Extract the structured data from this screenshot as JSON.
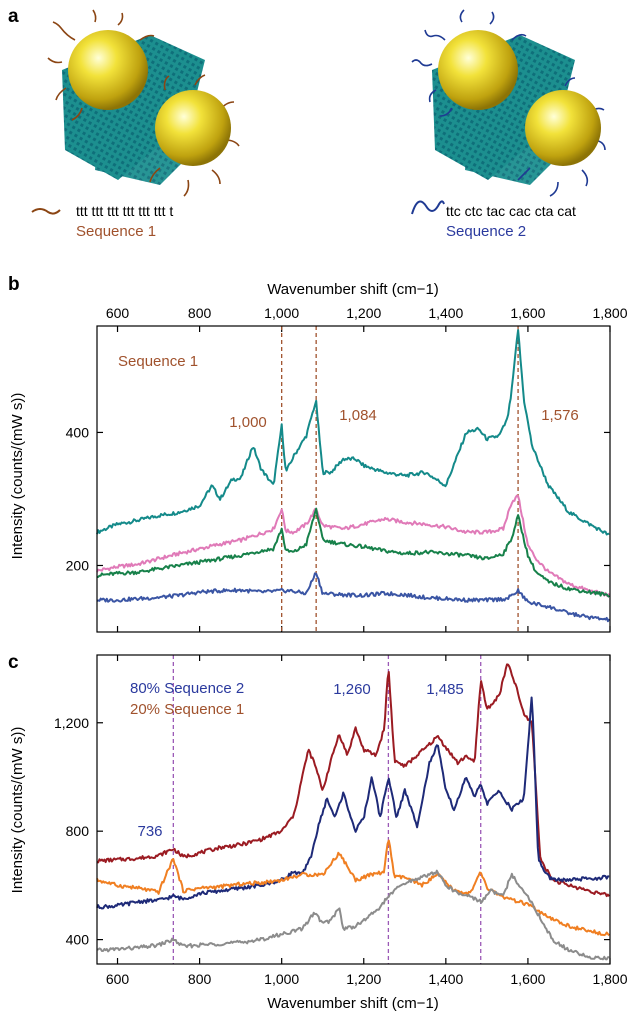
{
  "panel_a": {
    "label": "a",
    "left": {
      "sequence_text": "ttt ttt ttt ttt ttt ttt t",
      "sequence_name": "Sequence 1",
      "strand_color": "#8B4513"
    },
    "right": {
      "sequence_text": "ttc ctc tac cac cta cat",
      "sequence_name": "Sequence 2",
      "strand_color": "#1F3A93"
    },
    "sheet_color": "#1a8a8a",
    "sphere_color": "#d8c21a"
  },
  "panel_b": {
    "label": "b",
    "top_axis_label": "Wavenumber shift (cm−1)",
    "y_label": "Intensity (counts/(mW s))",
    "legend_text": "Sequence 1",
    "peak_labels": [
      "1,000",
      "1,084",
      "1,576"
    ]
  },
  "panel_c": {
    "label": "c",
    "x_label": "Wavenumber shift (cm−1)",
    "y_label": "Intensity (counts/(mW s))",
    "legend_line1": "80% Sequence 2",
    "legend_line2": "20% Sequence 1",
    "peak_labels": [
      "736",
      "1,260",
      "1,485"
    ]
  },
  "chart_data": [
    {
      "type": "line",
      "panel": "b",
      "xlabel": "Wavenumber shift (cm−1)",
      "ylabel": "Intensity (counts/(mW s))",
      "xlim": [
        550,
        1800
      ],
      "ylim": [
        100,
        560
      ],
      "x_ticks": [
        600,
        800,
        1000,
        1200,
        1400,
        1600,
        1800
      ],
      "x_tick_labels": [
        "600",
        "800",
        "1,000",
        "1,200",
        "1,400",
        "1,600",
        "1,800"
      ],
      "y_ticks": [
        200,
        400
      ],
      "y_tick_labels": [
        "200",
        "400"
      ],
      "x_axis_position": "top",
      "grid": false,
      "annotation": "Sequence 1",
      "reference_lines": [
        1000,
        1084,
        1576
      ],
      "reference_line_color": "#a0522d",
      "reference_line_labels": [
        "1,000",
        "1,084",
        "1,576"
      ],
      "series": [
        {
          "color": "#148a8a",
          "x": [
            550,
            600,
            650,
            700,
            750,
            800,
            830,
            850,
            880,
            900,
            930,
            950,
            980,
            1000,
            1010,
            1030,
            1060,
            1080,
            1084,
            1100,
            1120,
            1150,
            1180,
            1200,
            1250,
            1300,
            1350,
            1400,
            1450,
            1480,
            1500,
            1530,
            1550,
            1560,
            1576,
            1590,
            1610,
            1650,
            1700,
            1750,
            1800
          ],
          "y": [
            250,
            262,
            268,
            275,
            280,
            290,
            320,
            300,
            330,
            330,
            380,
            345,
            320,
            410,
            340,
            365,
            395,
            440,
            445,
            340,
            340,
            360,
            360,
            350,
            340,
            335,
            340,
            320,
            400,
            405,
            390,
            395,
            420,
            460,
            555,
            450,
            380,
            320,
            280,
            262,
            245
          ]
        },
        {
          "color": "#e07ab8",
          "x": [
            550,
            600,
            650,
            700,
            750,
            800,
            850,
            900,
            950,
            980,
            1000,
            1010,
            1030,
            1060,
            1084,
            1100,
            1150,
            1200,
            1250,
            1300,
            1350,
            1400,
            1450,
            1500,
            1540,
            1560,
            1576,
            1600,
            1620,
            1650,
            1700,
            1750,
            1800
          ],
          "y": [
            192,
            198,
            202,
            210,
            218,
            225,
            232,
            238,
            248,
            255,
            285,
            252,
            250,
            262,
            285,
            260,
            255,
            262,
            270,
            265,
            262,
            258,
            250,
            250,
            255,
            295,
            305,
            230,
            210,
            190,
            172,
            162,
            155
          ]
        },
        {
          "color": "#17814a",
          "x": [
            550,
            600,
            650,
            700,
            750,
            800,
            850,
            900,
            950,
            980,
            1000,
            1010,
            1030,
            1060,
            1084,
            1100,
            1150,
            1200,
            1250,
            1300,
            1350,
            1400,
            1450,
            1500,
            1540,
            1560,
            1576,
            1600,
            1620,
            1650,
            1700,
            1750,
            1800
          ],
          "y": [
            185,
            188,
            190,
            195,
            200,
            205,
            210,
            215,
            222,
            225,
            255,
            222,
            220,
            232,
            285,
            238,
            232,
            228,
            222,
            218,
            220,
            218,
            215,
            210,
            218,
            240,
            275,
            215,
            190,
            175,
            165,
            160,
            155
          ]
        },
        {
          "color": "#3a55a4",
          "x": [
            550,
            600,
            650,
            700,
            750,
            800,
            850,
            900,
            950,
            1000,
            1020,
            1060,
            1084,
            1100,
            1150,
            1200,
            1250,
            1300,
            1350,
            1400,
            1450,
            1500,
            1550,
            1576,
            1600,
            1650,
            1700,
            1750,
            1800
          ],
          "y": [
            148,
            148,
            150,
            152,
            155,
            160,
            162,
            163,
            160,
            162,
            162,
            158,
            190,
            158,
            156,
            155,
            158,
            156,
            152,
            150,
            148,
            148,
            150,
            162,
            145,
            138,
            128,
            122,
            118
          ]
        }
      ]
    },
    {
      "type": "line",
      "panel": "c",
      "xlabel": "Wavenumber shift (cm−1)",
      "ylabel": "Intensity (counts/(mW s))",
      "xlim": [
        550,
        1800
      ],
      "ylim": [
        310,
        1450
      ],
      "x_ticks": [
        600,
        800,
        1000,
        1200,
        1400,
        1600,
        1800
      ],
      "x_tick_labels": [
        "600",
        "800",
        "1,000",
        "1,200",
        "1,400",
        "1,600",
        "1,800"
      ],
      "y_ticks": [
        400,
        800,
        1200
      ],
      "y_tick_labels": [
        "400",
        "800",
        "1,200"
      ],
      "grid": false,
      "annotation": [
        "80% Sequence 2",
        "20% Sequence 1"
      ],
      "reference_lines": [
        736,
        1260,
        1485
      ],
      "reference_line_color": "#9b59b6",
      "reference_line_labels": [
        "736",
        "1,260",
        "1,485"
      ],
      "series": [
        {
          "color": "#9b1b22",
          "x": [
            550,
            600,
            650,
            700,
            736,
            760,
            800,
            850,
            900,
            950,
            1000,
            1030,
            1050,
            1065,
            1080,
            1100,
            1120,
            1140,
            1160,
            1180,
            1200,
            1230,
            1250,
            1260,
            1275,
            1300,
            1330,
            1360,
            1380,
            1400,
            1430,
            1450,
            1470,
            1485,
            1500,
            1530,
            1550,
            1570,
            1590,
            1610,
            1630,
            1660,
            1700,
            1750,
            1800
          ],
          "y": [
            690,
            695,
            700,
            710,
            735,
            705,
            720,
            740,
            750,
            770,
            800,
            860,
            1000,
            1100,
            1050,
            950,
            1060,
            1160,
            1080,
            1180,
            1100,
            1080,
            1180,
            1410,
            1060,
            1040,
            1080,
            1120,
            1150,
            1110,
            1050,
            1080,
            1050,
            1360,
            1250,
            1300,
            1420,
            1340,
            1230,
            1200,
            700,
            620,
            600,
            580,
            560
          ]
        },
        {
          "color": "#1e2a78",
          "x": [
            550,
            600,
            650,
            700,
            736,
            760,
            800,
            850,
            900,
            950,
            1000,
            1030,
            1050,
            1070,
            1090,
            1110,
            1130,
            1150,
            1180,
            1200,
            1220,
            1240,
            1260,
            1280,
            1300,
            1330,
            1360,
            1380,
            1400,
            1420,
            1450,
            1470,
            1485,
            1500,
            1530,
            1560,
            1590,
            1610,
            1625,
            1640,
            1660,
            1700,
            1750,
            1800
          ],
          "y": [
            520,
            525,
            540,
            545,
            560,
            550,
            570,
            580,
            590,
            600,
            620,
            650,
            640,
            700,
            820,
            920,
            850,
            940,
            800,
            850,
            1000,
            850,
            1000,
            850,
            950,
            820,
            1050,
            1120,
            950,
            880,
            1000,
            920,
            980,
            900,
            950,
            880,
            920,
            1310,
            700,
            650,
            620,
            620,
            625,
            630
          ]
        },
        {
          "color": "#f07f22",
          "x": [
            550,
            600,
            650,
            700,
            736,
            760,
            800,
            850,
            900,
            950,
            1000,
            1050,
            1100,
            1140,
            1180,
            1220,
            1250,
            1260,
            1275,
            1300,
            1340,
            1380,
            1420,
            1460,
            1485,
            1500,
            1550,
            1600,
            1650,
            1700,
            1750,
            1800
          ],
          "y": [
            620,
            600,
            590,
            575,
            700,
            580,
            590,
            595,
            605,
            610,
            620,
            640,
            640,
            720,
            620,
            640,
            650,
            780,
            630,
            630,
            600,
            640,
            580,
            570,
            650,
            590,
            550,
            530,
            480,
            450,
            430,
            420
          ]
        },
        {
          "color": "#8c8c8c",
          "x": [
            550,
            600,
            650,
            700,
            736,
            760,
            800,
            850,
            900,
            950,
            1000,
            1050,
            1080,
            1100,
            1120,
            1140,
            1150,
            1180,
            1200,
            1240,
            1260,
            1290,
            1320,
            1360,
            1380,
            1400,
            1430,
            1460,
            1485,
            1510,
            1540,
            1560,
            1580,
            1600,
            1630,
            1660,
            1700,
            1750,
            1800
          ],
          "y": [
            360,
            365,
            370,
            380,
            400,
            375,
            380,
            385,
            390,
            400,
            420,
            440,
            500,
            460,
            470,
            520,
            440,
            450,
            470,
            520,
            560,
            600,
            620,
            640,
            650,
            600,
            570,
            560,
            540,
            580,
            560,
            640,
            600,
            560,
            480,
            400,
            360,
            335,
            330
          ]
        }
      ]
    }
  ]
}
